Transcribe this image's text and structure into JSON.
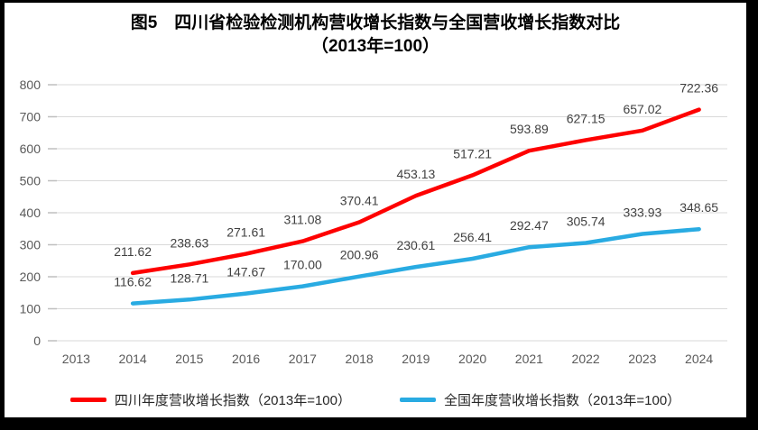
{
  "title": {
    "line1": "图5　四川省检验检测机构营收增长指数与全国营收增长指数对比",
    "line2": "（2013年=100）"
  },
  "chart_data": {
    "type": "line",
    "title": "图5 四川省检验检测机构营收增长指数与全国营收增长指数对比（2013年=100）",
    "categories": [
      "2013",
      "2014",
      "2015",
      "2016",
      "2017",
      "2018",
      "2019",
      "2020",
      "2021",
      "2022",
      "2023",
      "2024"
    ],
    "series": [
      {
        "name": "四川年度营收增长指数（2013年=100）",
        "color": "#fe0000",
        "values": [
          null,
          211.62,
          238.63,
          271.61,
          311.08,
          370.41,
          453.13,
          517.21,
          593.89,
          627.15,
          657.02,
          722.36
        ]
      },
      {
        "name": "全国年度营收增长指数（2013年=100）",
        "color": "#29abe2",
        "values": [
          null,
          116.62,
          128.71,
          147.67,
          170.0,
          200.96,
          230.61,
          256.41,
          292.47,
          305.74,
          333.93,
          348.65
        ]
      }
    ],
    "xlabel": "",
    "ylabel": "",
    "ylim": [
      0,
      800
    ],
    "ytick_step": 100,
    "grid": true,
    "legend_position": "bottom",
    "data_labels": true,
    "label_decimals": 2
  },
  "colors": {
    "gridline": "#d9d9d9",
    "tick": "#bfbfbf",
    "axis_text": "#595959",
    "data_label_text": "#404040",
    "title_text": "#000000",
    "frame": "#000000"
  }
}
